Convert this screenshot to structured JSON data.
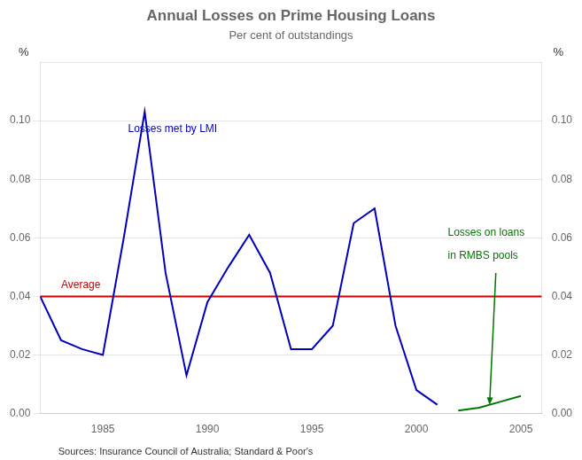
{
  "chart_data": {
    "type": "line",
    "title": "Annual Losses on Prime Housing Loans",
    "subtitle": "Per cent of outstandings",
    "ylabel": "%",
    "y2label": "%",
    "source": "Sources: Insurance Council of Australia; Standard & Poor's",
    "xlim": [
      1982,
      2006
    ],
    "xticks": [
      1985,
      1990,
      1995,
      2000,
      2005
    ],
    "ylim": [
      0.0,
      0.12
    ],
    "yticks": [
      {
        "value": 0.0,
        "label": "0.00"
      },
      0.02,
      0.04,
      0.06,
      0.08,
      {
        "value": 0.1,
        "label": "0.10"
      }
    ],
    "y2lim": [
      0.0,
      0.12
    ],
    "y2ticks": [
      {
        "value": 0.0,
        "label": "0.00"
      },
      0.02,
      0.04,
      0.06,
      0.08,
      {
        "value": 0.1,
        "label": "0.10"
      }
    ],
    "grid": "y",
    "series": [
      {
        "color": "#0000bb",
        "x": [
          1982,
          1983,
          1984,
          1985,
          1986,
          1987,
          1988,
          1989,
          1990,
          1991,
          1992,
          1993,
          1994,
          1995,
          1996,
          1997,
          1998,
          1999,
          2000,
          2001
        ],
        "values": [
          0.04,
          0.025,
          0.022,
          0.02,
          0.06,
          0.103,
          0.048,
          0.013,
          0.038,
          0.05,
          0.061,
          0.048,
          0.022,
          0.022,
          0.03,
          0.065,
          0.07,
          0.03,
          0.008,
          0.003
        ]
      },
      {
        "color": "#007700",
        "x": [
          2002,
          2003,
          2004,
          2005
        ],
        "values": [
          0.001,
          0.002,
          0.004,
          0.006
        ]
      }
    ],
    "hline": {
      "y": 0.04,
      "color": "#cc0000"
    },
    "annotations": [
      {
        "text": "Losses met by LMI",
        "x": 1986.2,
        "y": 0.099,
        "color": "#0000bb"
      },
      {
        "text": "Average",
        "x": 1983.0,
        "y": 0.042,
        "color": "#cc0000"
      },
      {
        "text": "Losses on loans",
        "x": 2001.5,
        "y": 0.06,
        "color": "#007700"
      },
      {
        "text": "in RMBS pools",
        "x": 2001.5,
        "y": 0.052,
        "color": "#007700"
      }
    ],
    "arrow": {
      "from": [
        2003.8,
        0.048
      ],
      "to": [
        2003.5,
        0.003
      ],
      "color": "#007700"
    }
  }
}
